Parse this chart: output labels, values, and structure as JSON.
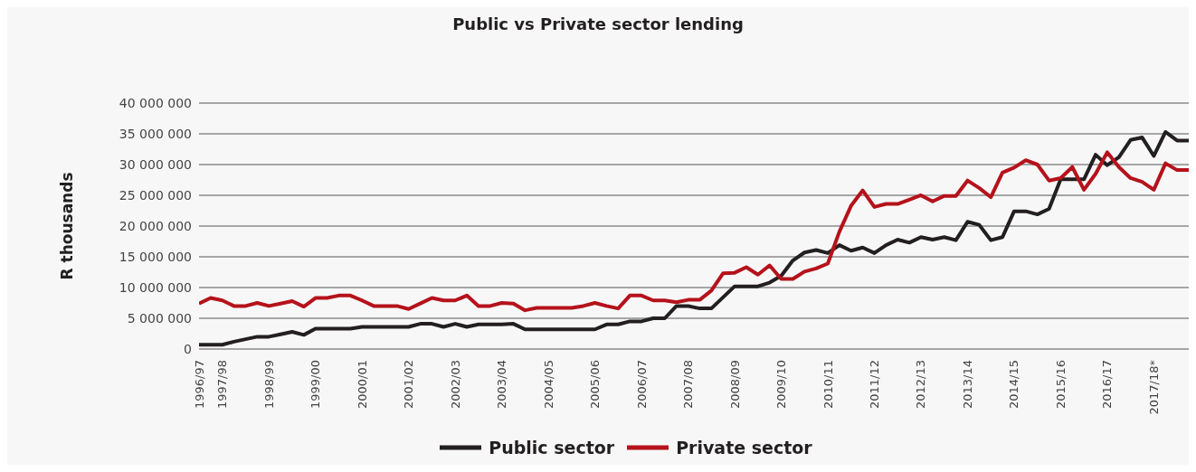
{
  "chart_data": {
    "type": "line",
    "title": "Public vs Private sector lending",
    "ylabel": "R thousands",
    "categories": [
      "1996/97",
      null,
      "1997/98",
      null,
      null,
      null,
      "1998/99",
      null,
      null,
      null,
      "1999/00",
      null,
      null,
      null,
      "2000/01",
      null,
      null,
      null,
      "2001/02",
      null,
      null,
      null,
      "2002/03",
      null,
      null,
      null,
      "2003/04",
      null,
      null,
      null,
      "2004/05",
      null,
      null,
      null,
      "2005/06",
      null,
      null,
      null,
      "2006/07",
      null,
      null,
      null,
      "2007/08",
      null,
      null,
      null,
      "2008/09",
      null,
      null,
      null,
      "2009/10",
      null,
      null,
      null,
      "2010/11",
      null,
      null,
      null,
      "2011/12",
      null,
      null,
      null,
      "2012/13",
      null,
      null,
      null,
      "2013/14",
      null,
      null,
      null,
      "2014/15",
      null,
      null,
      null,
      "2015/16",
      null,
      null,
      null,
      "2016/17",
      null,
      null,
      null,
      "2017/18*",
      null,
      null,
      null
    ],
    "series": [
      {
        "name": "Public sector",
        "color": "#231f20",
        "values": [
          700000,
          700000,
          700000,
          1200000,
          1600000,
          2000000,
          2000000,
          2400000,
          2800000,
          2300000,
          3300000,
          3300000,
          3300000,
          3300000,
          3600000,
          3600000,
          3600000,
          3600000,
          3600000,
          4100000,
          4100000,
          3600000,
          4100000,
          3600000,
          4000000,
          4000000,
          4000000,
          4100000,
          3200000,
          3200000,
          3200000,
          3200000,
          3200000,
          3200000,
          3200000,
          4000000,
          4000000,
          4500000,
          4500000,
          5000000,
          5000000,
          7000000,
          7000000,
          6600000,
          6600000,
          8400000,
          10200000,
          10200000,
          10200000,
          10800000,
          11900000,
          14400000,
          15700000,
          16100000,
          15600000,
          16900000,
          16000000,
          16500000,
          15600000,
          16900000,
          17800000,
          17300000,
          18200000,
          17800000,
          18200000,
          17700000,
          20700000,
          20200000,
          17700000,
          18200000,
          22400000,
          22400000,
          21900000,
          22800000,
          27600000,
          27600000,
          27600000,
          31600000,
          29900000,
          31200000,
          34000000,
          34400000,
          31400000,
          35300000,
          33900000,
          33900000
        ]
      },
      {
        "name": "Private sector",
        "color": "#b5121b",
        "values": [
          7400000,
          8300000,
          7900000,
          7000000,
          7000000,
          7500000,
          7000000,
          7400000,
          7800000,
          6900000,
          8300000,
          8300000,
          8700000,
          8700000,
          7900000,
          7000000,
          7000000,
          7000000,
          6500000,
          7400000,
          8300000,
          7900000,
          7900000,
          8700000,
          7000000,
          7000000,
          7500000,
          7400000,
          6300000,
          6700000,
          6700000,
          6700000,
          6700000,
          7000000,
          7500000,
          7000000,
          6600000,
          8700000,
          8700000,
          7900000,
          7900000,
          7600000,
          8000000,
          8000000,
          9500000,
          12300000,
          12400000,
          13300000,
          12100000,
          13600000,
          11400000,
          11400000,
          12600000,
          13100000,
          13900000,
          19100000,
          23300000,
          25800000,
          23100000,
          23600000,
          23600000,
          24300000,
          25000000,
          24000000,
          24900000,
          24900000,
          27400000,
          26200000,
          24700000,
          28700000,
          29500000,
          30700000,
          30000000,
          27400000,
          27800000,
          29600000,
          25900000,
          28500000,
          32000000,
          29600000,
          27800000,
          27200000,
          25900000,
          30200000,
          29100000,
          29100000
        ]
      }
    ],
    "ylim": [
      0,
      40000000
    ],
    "yticks": [
      {
        "value": 0,
        "label": "0"
      },
      {
        "value": 5000000,
        "label": "5 000 000"
      },
      {
        "value": 10000000,
        "label": "10 000 000"
      },
      {
        "value": 15000000,
        "label": "15 000 000"
      },
      {
        "value": 20000000,
        "label": "20 000 000"
      },
      {
        "value": 25000000,
        "label": "25 000 000"
      },
      {
        "value": 30000000,
        "label": "30 000 000"
      },
      {
        "value": 35000000,
        "label": "35 000 000"
      },
      {
        "value": 40000000,
        "label": "40 000 000"
      }
    ],
    "grid": "y",
    "legend": "bottom",
    "marker": "none",
    "line_style": "solid"
  }
}
